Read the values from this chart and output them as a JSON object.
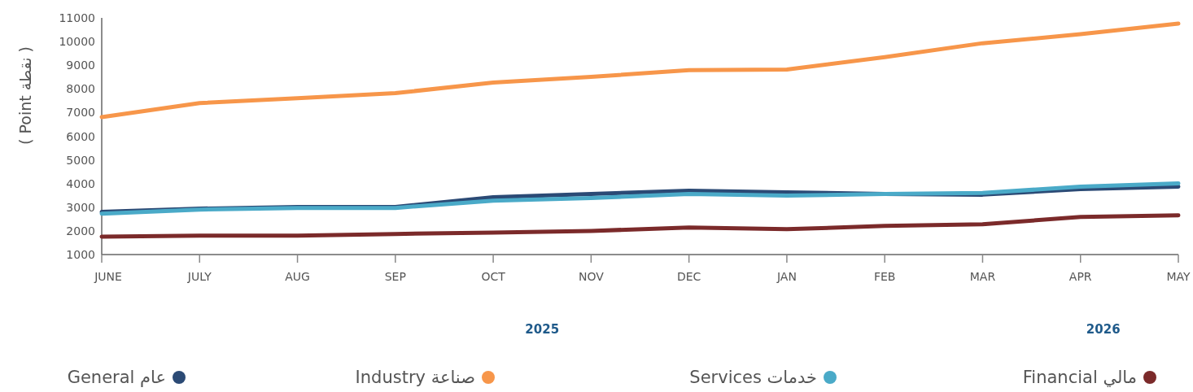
{
  "chart_data": {
    "type": "line",
    "ylabel": "( Point نقطة )",
    "categories": [
      "JUNE",
      "JULY",
      "AUG",
      "SEP",
      "OCT",
      "NOV",
      "DEC",
      "JAN",
      "FEB",
      "MAR",
      "APR",
      "MAY"
    ],
    "ylim": [
      1000,
      11000
    ],
    "yticks": [
      1000,
      2000,
      3000,
      4000,
      5000,
      6000,
      7000,
      8000,
      9000,
      10000,
      11000
    ],
    "series": [
      {
        "name": "General عام",
        "color": "#2b4a75",
        "values": [
          2800,
          2940,
          3010,
          3010,
          3420,
          3560,
          3700,
          3630,
          3560,
          3530,
          3770,
          3870
        ]
      },
      {
        "name": "Industry صناعة",
        "color": "#f7964a",
        "values": [
          6810,
          7400,
          7610,
          7820,
          8270,
          8510,
          8790,
          8820,
          9340,
          9930,
          10310,
          10760
        ]
      },
      {
        "name": "Services خدمات",
        "color": "#4aaac8",
        "values": [
          2730,
          2900,
          2970,
          2970,
          3280,
          3390,
          3560,
          3490,
          3560,
          3600,
          3870,
          4010
        ]
      },
      {
        "name": "Financial مالي",
        "color": "#7b2a2a",
        "values": [
          1760,
          1800,
          1800,
          1870,
          1930,
          2000,
          2140,
          2070,
          2210,
          2280,
          2590,
          2660
        ]
      }
    ],
    "annotations": [
      "2025",
      "2026"
    ],
    "legend": "bottom",
    "marker": "none",
    "line_style": "solid",
    "grid": false
  }
}
